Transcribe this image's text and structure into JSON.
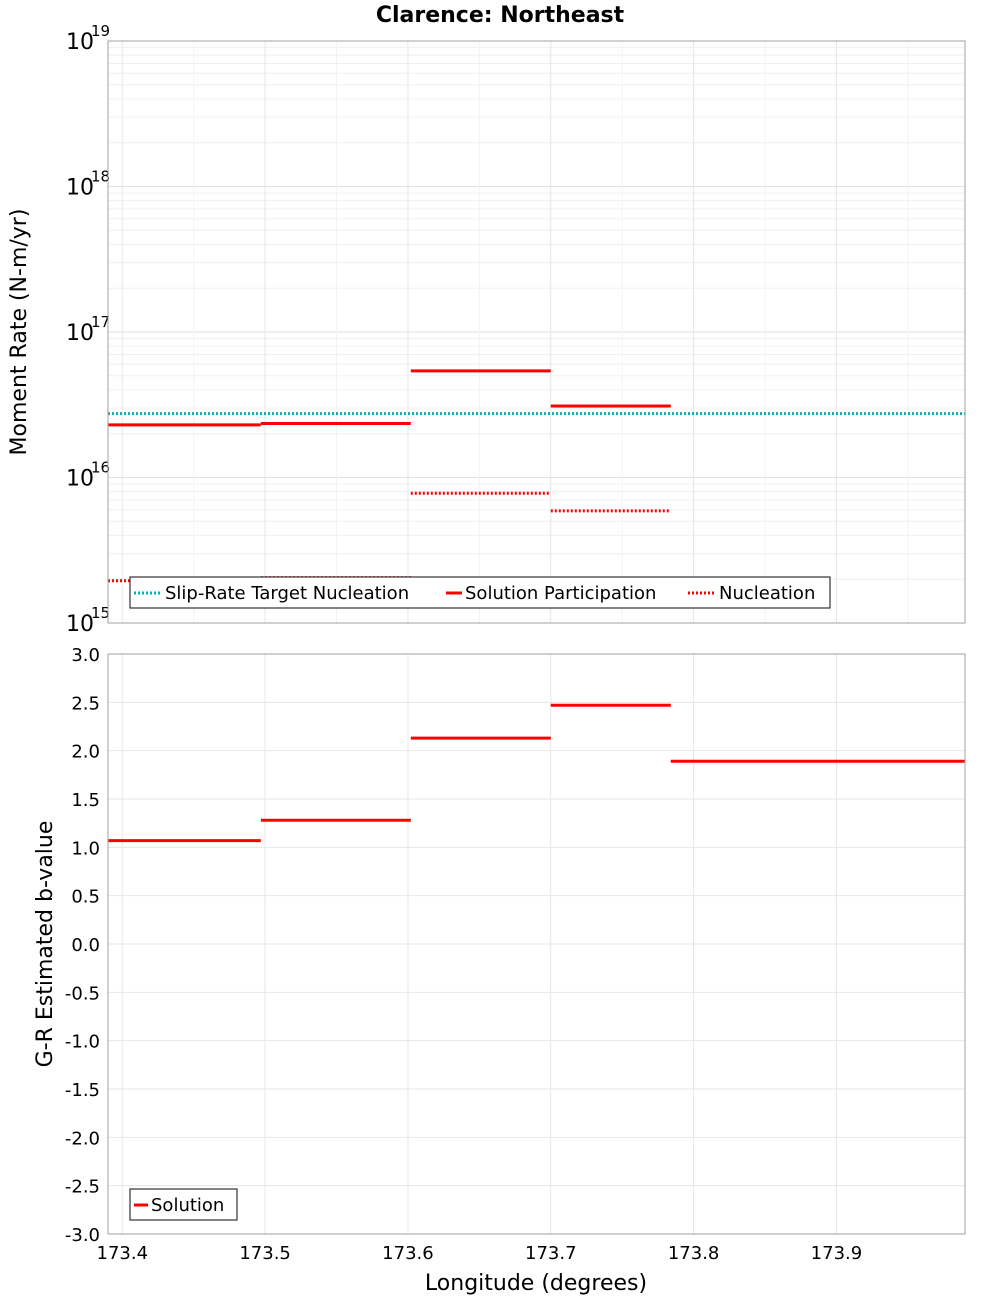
{
  "chart_data": [
    {
      "type": "line",
      "subtype": "step-segments",
      "title": "Clarence: Northeast",
      "xlabel": "",
      "ylabel": "Moment Rate (N-m/yr)",
      "yscale": "log",
      "xlim": [
        173.39,
        173.99
      ],
      "ylim": [
        1000000000000000.0,
        1e+19
      ],
      "ytick_exponents": [
        "15",
        "16",
        "17",
        "18",
        "19"
      ],
      "grid": true,
      "legend_position": "bottom-left",
      "series": [
        {
          "name": "Slip-Rate Target Nucleation",
          "color": "#00b3b3",
          "style": "dotted",
          "segments": [
            {
              "x0": 173.39,
              "x1": 173.99,
              "y": 2.75e+16
            }
          ]
        },
        {
          "name": "Solution Participation",
          "color": "#ff0000",
          "style": "solid",
          "segments": [
            {
              "x0": 173.39,
              "x1": 173.497,
              "y": 2.3e+16
            },
            {
              "x0": 173.497,
              "x1": 173.602,
              "y": 2.35e+16
            },
            {
              "x0": 173.602,
              "x1": 173.7,
              "y": 5.4e+16
            },
            {
              "x0": 173.7,
              "x1": 173.784,
              "y": 3.1e+16
            }
          ]
        },
        {
          "name": "Nucleation",
          "color": "#ff0000",
          "style": "dotted",
          "segments": [
            {
              "x0": 173.39,
              "x1": 173.497,
              "y": 1950000000000000.0
            },
            {
              "x0": 173.497,
              "x1": 173.602,
              "y": 2050000000000000.0
            },
            {
              "x0": 173.602,
              "x1": 173.7,
              "y": 7800000000000000.0
            },
            {
              "x0": 173.7,
              "x1": 173.784,
              "y": 5900000000000000.0
            }
          ]
        }
      ]
    },
    {
      "type": "line",
      "subtype": "step-segments",
      "title": "",
      "xlabel": "Longitude (degrees)",
      "ylabel": "G-R Estimated b-value",
      "xlim": [
        173.39,
        173.99
      ],
      "ylim": [
        -3.0,
        3.0
      ],
      "xticks": [
        "173.4",
        "173.5",
        "173.6",
        "173.7",
        "173.8",
        "173.9"
      ],
      "yticks": [
        "3.0",
        "2.5",
        "2.0",
        "1.5",
        "1.0",
        "0.5",
        "0.0",
        "-0.5",
        "-1.0",
        "-1.5",
        "-2.0",
        "-2.5",
        "-3.0"
      ],
      "grid": true,
      "legend_position": "bottom-left",
      "series": [
        {
          "name": "Solution",
          "color": "#ff0000",
          "style": "solid",
          "segments": [
            {
              "x0": 173.39,
              "x1": 173.497,
              "y": 1.07
            },
            {
              "x0": 173.497,
              "x1": 173.602,
              "y": 1.28
            },
            {
              "x0": 173.602,
              "x1": 173.7,
              "y": 2.13
            },
            {
              "x0": 173.7,
              "x1": 173.784,
              "y": 2.47
            },
            {
              "x0": 173.784,
              "x1": 173.99,
              "y": 1.89
            }
          ]
        }
      ]
    }
  ]
}
